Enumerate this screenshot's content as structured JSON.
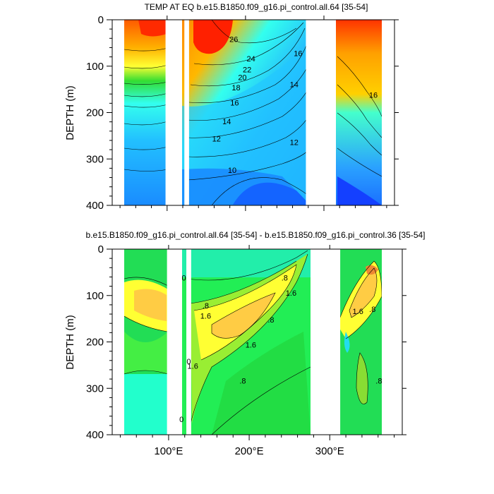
{
  "chart_data": [
    {
      "type": "contour",
      "title": "TEMP AT EQ b.e15.B1850.f09_g16.pi_control.all.64 [35-54]",
      "ylabel": "DEPTH (m)",
      "ylim": [
        0,
        400
      ],
      "yticks": [
        0,
        100,
        200,
        300,
        400
      ],
      "ytick_labels": [
        "0",
        "100",
        "200",
        "300",
        "400"
      ],
      "xlim": [
        30,
        390
      ],
      "xticks": [
        100,
        200,
        300
      ],
      "xtick_labels": [
        "",
        "",
        ""
      ],
      "land_gaps_lon": [
        [
          98,
          116
        ],
        [
          122,
          128
        ],
        [
          277,
          313
        ]
      ],
      "contour_labels": [
        {
          "text": "26",
          "lon": 185,
          "depth": 48
        },
        {
          "text": "24",
          "lon": 207,
          "depth": 90
        },
        {
          "text": "22",
          "lon": 202,
          "depth": 113
        },
        {
          "text": "20",
          "lon": 196,
          "depth": 130
        },
        {
          "text": "18",
          "lon": 188,
          "depth": 152
        },
        {
          "text": "16",
          "lon": 267,
          "depth": 78
        },
        {
          "text": "16",
          "lon": 186,
          "depth": 185
        },
        {
          "text": "14",
          "lon": 262,
          "depth": 145
        },
        {
          "text": "16",
          "lon": 363,
          "depth": 168
        },
        {
          "text": "14",
          "lon": 176,
          "depth": 225
        },
        {
          "text": "12",
          "lon": 163,
          "depth": 262
        },
        {
          "text": "12",
          "lon": 262,
          "depth": 270
        },
        {
          "text": "10",
          "lon": 183,
          "depth": 330
        }
      ]
    },
    {
      "type": "contour",
      "title": "b.e15.B1850.f09_g16.pi_control.all.64 [35-54] - b.e15.B1850.f09_g16.pi_control.36 [35-54]",
      "ylabel": "DEPTH (m)",
      "ylim": [
        0,
        400
      ],
      "yticks": [
        0,
        100,
        200,
        300,
        400
      ],
      "ytick_labels": [
        "0",
        "100",
        "200",
        "300",
        "400"
      ],
      "xlim": [
        30,
        390
      ],
      "xticks": [
        100,
        200,
        300
      ],
      "xtick_labels": [
        "100°E",
        "200°E",
        "300°E"
      ],
      "land_gaps_lon": [
        [
          98,
          116
        ],
        [
          122,
          128
        ],
        [
          277,
          313
        ]
      ],
      "contour_labels": [
        {
          "text": "0",
          "lon": 119,
          "depth": 68
        },
        {
          "text": ".8",
          "lon": 244,
          "depth": 68
        },
        {
          "text": ".8",
          "lon": 146,
          "depth": 128
        },
        {
          "text": "1.6",
          "lon": 146,
          "depth": 150
        },
        {
          "text": "1.6",
          "lon": 252,
          "depth": 100
        },
        {
          "text": "1.6",
          "lon": 202,
          "depth": 212
        },
        {
          "text": ".8",
          "lon": 227,
          "depth": 158
        },
        {
          "text": "0",
          "lon": 125,
          "depth": 248
        },
        {
          "text": "1.6",
          "lon": 130,
          "depth": 258
        },
        {
          "text": ".8",
          "lon": 192,
          "depth": 290
        },
        {
          "text": "0",
          "lon": 116,
          "depth": 373
        },
        {
          "text": "1.6",
          "lon": 335,
          "depth": 140
        },
        {
          "text": ".8",
          "lon": 353,
          "depth": 135
        },
        {
          "text": ".8",
          "lon": 361,
          "depth": 290
        }
      ]
    }
  ]
}
